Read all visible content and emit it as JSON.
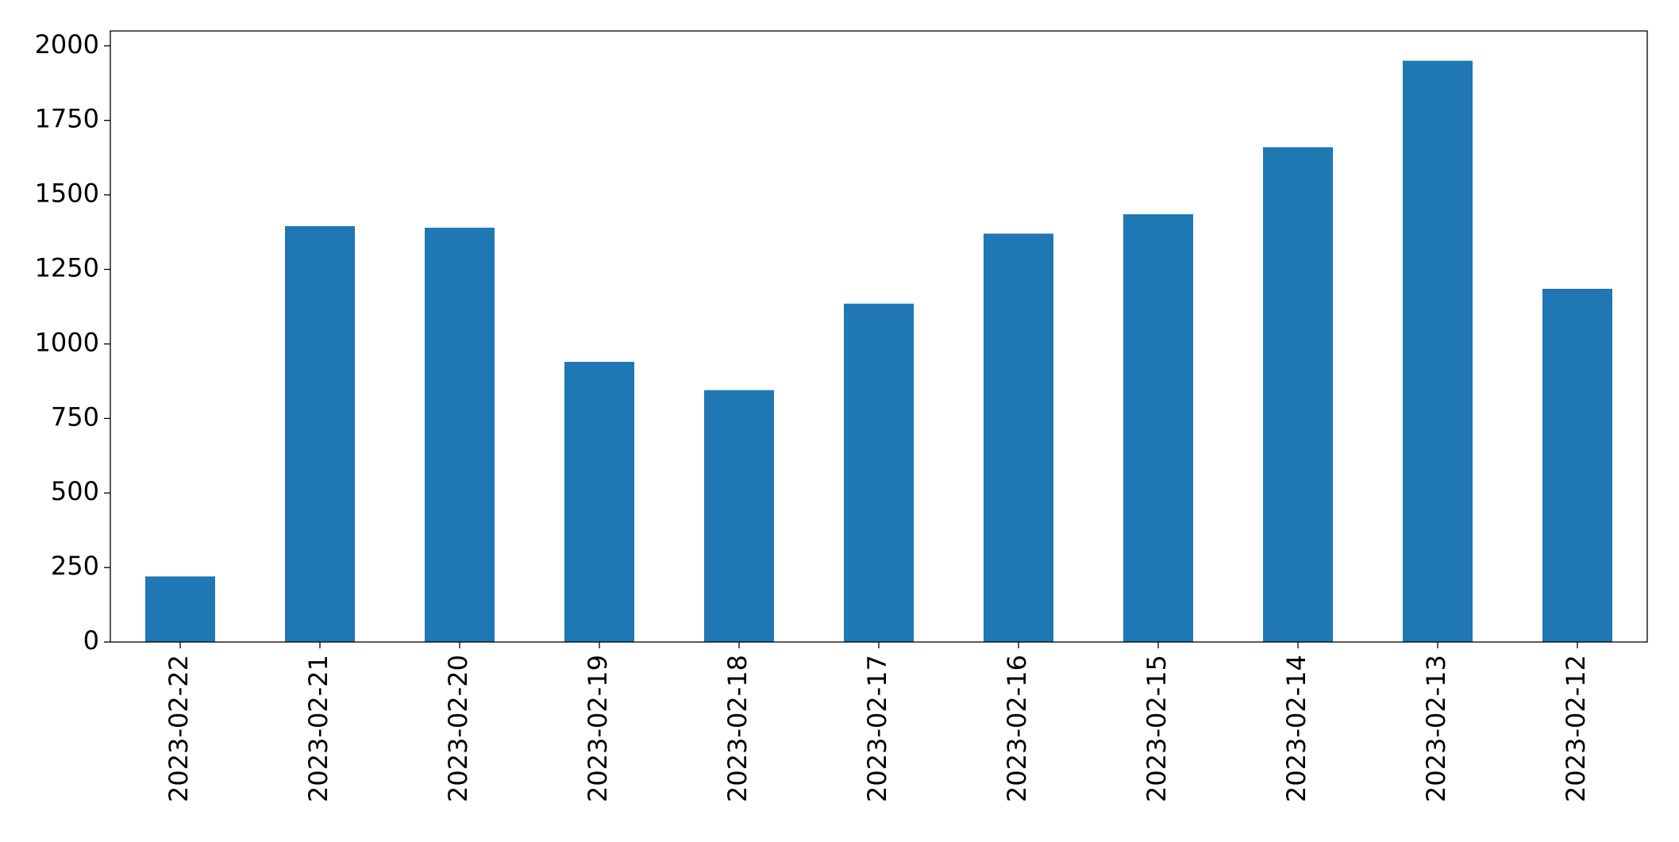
{
  "chart_data": {
    "type": "bar",
    "categories": [
      "2023-02-22",
      "2023-02-21",
      "2023-02-20",
      "2023-02-19",
      "2023-02-18",
      "2023-02-17",
      "2023-02-16",
      "2023-02-15",
      "2023-02-14",
      "2023-02-13",
      "2023-02-12"
    ],
    "values": [
      220,
      1395,
      1390,
      940,
      845,
      1135,
      1370,
      1435,
      1660,
      1950,
      1185
    ],
    "color": "#1f77b4",
    "ylim": [
      0,
      2050
    ],
    "yticks": [
      0,
      250,
      500,
      750,
      1000,
      1250,
      1500,
      1750,
      2000
    ],
    "grid": false
  }
}
